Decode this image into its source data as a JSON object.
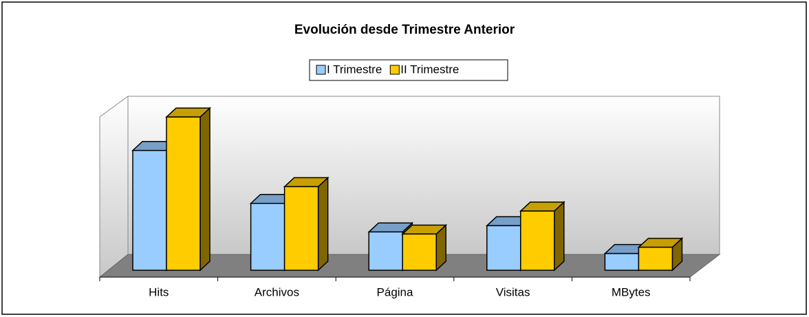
{
  "chart_data": {
    "type": "bar3d",
    "title": "Evolución desde Trimestre Anterior",
    "categories": [
      "Hits",
      "Archivos",
      "Página",
      "Visitas",
      "MBytes"
    ],
    "series": [
      {
        "name": "I Trimestre",
        "color": "#99ccff",
        "values": [
          172,
          96,
          55,
          64,
          24
        ]
      },
      {
        "name": "II Trimestre",
        "color": "#ffcc00",
        "values": [
          220,
          120,
          52,
          85,
          33
        ]
      }
    ],
    "ylim": [
      0,
      230
    ]
  }
}
